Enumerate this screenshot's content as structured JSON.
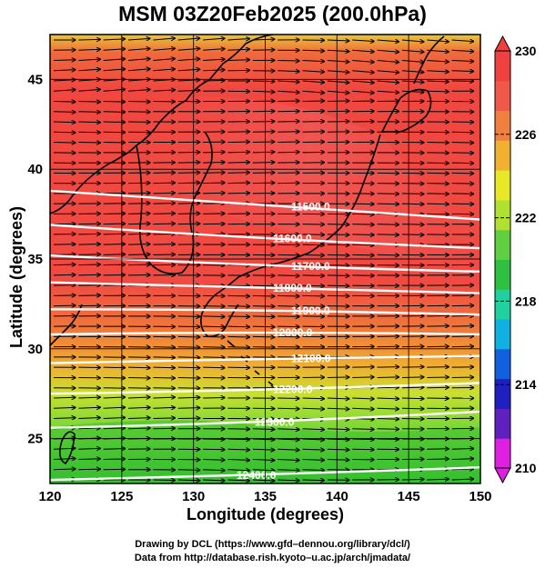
{
  "title": "MSM 03Z20Feb2025 (200.0hPa)",
  "x_axis": {
    "label": "Longitude (degrees)",
    "range": [
      120,
      150
    ],
    "ticks": [
      "120",
      "125",
      "130",
      "135",
      "140",
      "145",
      "150"
    ]
  },
  "y_axis": {
    "label": "Latitude  (degrees)",
    "range": [
      22.5,
      47.5
    ],
    "ticks": [
      "25",
      "30",
      "35",
      "40",
      "45"
    ]
  },
  "colorbar": {
    "range": [
      210,
      230
    ],
    "ticks": [
      "210",
      "214",
      "218",
      "222",
      "226",
      "230"
    ],
    "colors": [
      "#e020e0",
      "#6020c0",
      "#2020c0",
      "#1060e0",
      "#10b0e0",
      "#20d0a0",
      "#30c040",
      "#60d040",
      "#b0e030",
      "#e8e828",
      "#f0b030",
      "#f08040",
      "#f05848",
      "#f04040"
    ]
  },
  "contours": [
    {
      "label": "11500.0",
      "lat_w": 38.8,
      "lat_e": 37.2
    },
    {
      "label": "11600.0",
      "lat_w": 36.9,
      "lat_e": 35.6
    },
    {
      "label": "11700.0",
      "lat_w": 35.2,
      "lat_e": 34.3
    },
    {
      "label": "11800.0",
      "lat_w": 33.7,
      "lat_e": 33.1
    },
    {
      "label": "11900.0",
      "lat_w": 32.2,
      "lat_e": 31.9
    },
    {
      "label": "12000.0",
      "lat_w": 30.8,
      "lat_e": 30.8
    },
    {
      "label": "12100.0",
      "lat_w": 29.2,
      "lat_e": 29.6
    },
    {
      "label": "12200.0",
      "lat_w": 27.5,
      "lat_e": 28.1
    },
    {
      "label": "12300.0",
      "lat_w": 25.6,
      "lat_e": 26.5
    },
    {
      "label": "12400.0",
      "lat_w": 22.7,
      "lat_e": 23.4
    }
  ],
  "footer": {
    "line1": "Drawing by DCL (https://www.gfd–dennou.org/library/dcl/)",
    "line2": "Data from http://database.rish.kyoto–u.ac.jp/arch/jmadata/"
  }
}
